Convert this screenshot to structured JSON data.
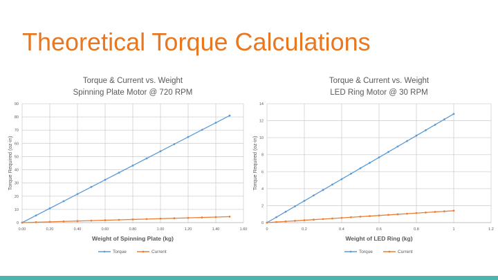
{
  "slide": {
    "title": "Theoretical Torque Calculations",
    "accent_color": "#e87722",
    "bottom_bar_color": "#4db6ac"
  },
  "chart_data": [
    {
      "type": "line",
      "title": "Torque & Current vs. Weight",
      "subtitle": "Spinning Plate Motor @ 720 RPM",
      "xlabel": "Weight of Spinning Plate (kg)",
      "ylabel": "Torque Required (oz-in)",
      "xlim": [
        0,
        1.6
      ],
      "ylim": [
        0,
        90
      ],
      "xticks": [
        0,
        0.2,
        0.4,
        0.6,
        0.8,
        1.0,
        1.2,
        1.4,
        1.6
      ],
      "xtick_labels": [
        "0.00",
        "0.20",
        "0.40",
        "0.60",
        "0.80",
        "1.00",
        "1.20",
        "1.40",
        "1.60"
      ],
      "yticks": [
        0,
        10,
        20,
        30,
        40,
        50,
        60,
        70,
        80,
        90
      ],
      "ytick_labels": [
        "0",
        "10",
        "20",
        "30",
        "40",
        "50",
        "60",
        "70",
        "80",
        "90"
      ],
      "grid": true,
      "legend_position": "bottom",
      "x": [
        0,
        0.1,
        0.2,
        0.3,
        0.4,
        0.5,
        0.6,
        0.7,
        0.8,
        0.9,
        1.0,
        1.1,
        1.2,
        1.3,
        1.4,
        1.5
      ],
      "series": [
        {
          "name": "Torque",
          "color": "#5b9bd5",
          "values": [
            0,
            5.4,
            10.8,
            16.2,
            21.6,
            27.0,
            32.4,
            37.8,
            43.2,
            48.6,
            54.0,
            59.4,
            64.8,
            70.2,
            75.6,
            81.0
          ]
        },
        {
          "name": "Current",
          "color": "#ed7d31",
          "values": [
            0,
            0.3,
            0.6,
            0.9,
            1.2,
            1.5,
            1.8,
            2.1,
            2.4,
            2.7,
            3.0,
            3.3,
            3.6,
            3.9,
            4.2,
            4.5
          ]
        }
      ]
    },
    {
      "type": "line",
      "title": "Torque & Current vs. Weight",
      "subtitle": "LED Ring Motor @ 30 RPM",
      "xlabel": "Weight of LED Ring (kg)",
      "ylabel": "Torque Required (oz-in)",
      "xlim": [
        0,
        1.2
      ],
      "ylim": [
        0,
        14
      ],
      "xticks": [
        0,
        0.2,
        0.4,
        0.6,
        0.8,
        1.0,
        1.2
      ],
      "xtick_labels": [
        "0",
        "0.2",
        "0.4",
        "0.6",
        "0.8",
        "1",
        "1.2"
      ],
      "yticks": [
        0,
        2,
        4,
        6,
        8,
        10,
        12,
        14
      ],
      "ytick_labels": [
        "0",
        "2",
        "4",
        "6",
        "8",
        "10",
        "12",
        "14"
      ],
      "grid": true,
      "legend_position": "bottom",
      "x": [
        0,
        0.05,
        0.1,
        0.15,
        0.2,
        0.25,
        0.3,
        0.35,
        0.4,
        0.45,
        0.5,
        0.55,
        0.6,
        0.65,
        0.7,
        0.75,
        0.8,
        0.85,
        0.9,
        0.95,
        1.0
      ],
      "series": [
        {
          "name": "Torque",
          "color": "#5b9bd5",
          "values": [
            0,
            0.64,
            1.28,
            1.92,
            2.56,
            3.2,
            3.84,
            4.48,
            5.12,
            5.76,
            6.4,
            7.04,
            7.68,
            8.32,
            8.96,
            9.6,
            10.24,
            10.88,
            11.52,
            12.16,
            12.8
          ]
        },
        {
          "name": "Current",
          "color": "#ed7d31",
          "values": [
            0,
            0.07,
            0.14,
            0.21,
            0.28,
            0.35,
            0.42,
            0.49,
            0.56,
            0.63,
            0.7,
            0.77,
            0.84,
            0.91,
            0.98,
            1.05,
            1.12,
            1.19,
            1.26,
            1.33,
            1.4
          ]
        }
      ]
    }
  ]
}
